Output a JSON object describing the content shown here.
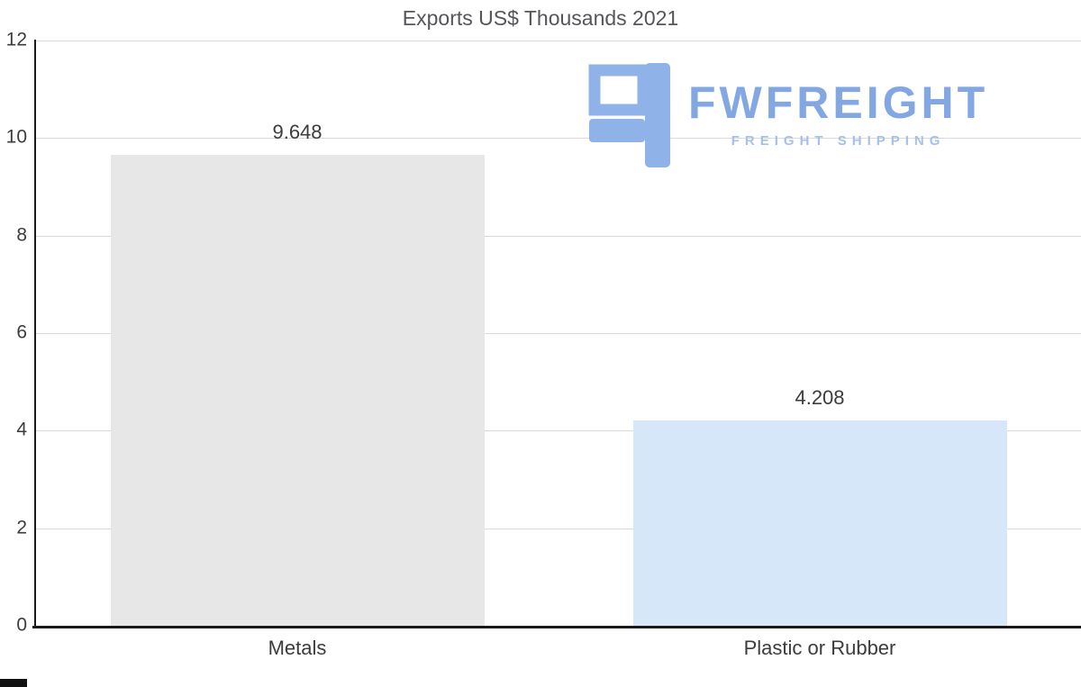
{
  "chart_data": {
    "type": "bar",
    "title": "Exports US$ Thousands 2021",
    "categories": [
      "Metals",
      "Plastic or Rubber"
    ],
    "values": [
      9.648,
      4.208
    ],
    "value_labels": [
      "9.648",
      "4.208"
    ],
    "bar_colors": [
      "#e7e7e7",
      "#d5e7f9"
    ],
    "y_ticks": [
      0,
      2,
      4,
      6,
      8,
      10,
      12
    ],
    "ylim": [
      0,
      12
    ],
    "grid": true,
    "legend": false,
    "xlabel": "",
    "ylabel": ""
  },
  "logo": {
    "name": "FWFREIGHT",
    "tagline": "FREIGHT SHIPPING",
    "brand_color": "#8fb2e8"
  }
}
